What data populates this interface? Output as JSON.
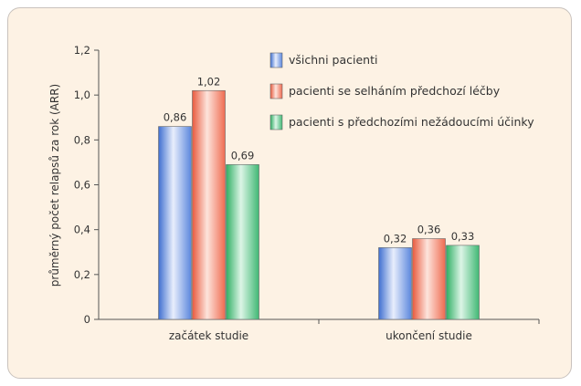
{
  "chart_data": {
    "type": "bar",
    "ylabel": "průměrný počet relapsů za rok (ARR)",
    "ylim": [
      0,
      1.2
    ],
    "yticks": [
      "0",
      "0,2",
      "0,4",
      "0,6",
      "0,8",
      "1,0",
      "1,2"
    ],
    "categories": [
      "začátek studie",
      "ukončení studie"
    ],
    "series": [
      {
        "name": "všichni pacienti",
        "values": [
          0.86,
          0.32
        ],
        "labels": [
          "0,86",
          "0,32"
        ],
        "color": "#6f95e0"
      },
      {
        "name": "pacienti se selháním předchozí léčby",
        "values": [
          1.02,
          0.36
        ],
        "labels": [
          "1,02",
          "0,36"
        ],
        "color": "#f07b62"
      },
      {
        "name": "pacienti s předchozími nežádoucími účinky",
        "values": [
          0.69,
          0.33
        ],
        "labels": [
          "0,69",
          "0,33"
        ],
        "color": "#5fc489"
      }
    ],
    "legend_position": "top-right",
    "grid": false
  }
}
